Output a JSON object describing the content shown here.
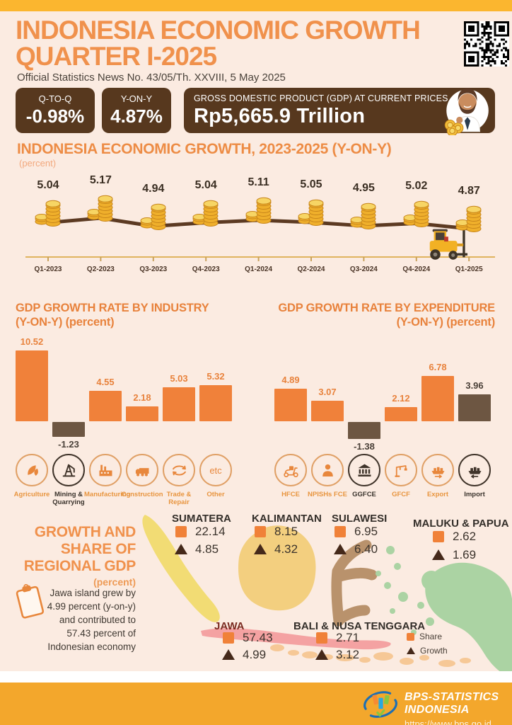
{
  "header": {
    "title_line1": "INDONESIA ECONOMIC GROWTH",
    "title_line2": "QUARTER I-2025",
    "subtitle": "Official Statistics News No. 43/05/Th. XXVIII, 5 May 2025",
    "stats": [
      {
        "label": "Q-TO-Q",
        "value": "-0.98%"
      },
      {
        "label": "Y-ON-Y",
        "value": "4.87%"
      },
      {
        "label": "GROSS DOMESTIC PRODUCT (GDP) AT CURRENT PRICES",
        "value": "Rp5,665.9 Trillion"
      }
    ]
  },
  "chart_data": [
    {
      "type": "line",
      "title": "INDONESIA ECONOMIC GROWTH, 2023-2025 (Y-ON-Y)",
      "ylabel": "(percent)",
      "categories": [
        "Q1-2023",
        "Q2-2023",
        "Q3-2023",
        "Q4-2023",
        "Q1-2024",
        "Q2-2024",
        "Q3-2024",
        "Q4-2024",
        "Q1-2025"
      ],
      "values": [
        5.04,
        5.17,
        4.94,
        5.04,
        5.11,
        5.05,
        4.95,
        5.02,
        4.87
      ],
      "marker": "coin-stack",
      "line_color": "#5C3A22",
      "grid": false
    },
    {
      "type": "bar",
      "title": "GDP GROWTH RATE BY INDUSTRY",
      "subtitle": "(Y-ON-Y) (percent)",
      "categories": [
        "Agriculture",
        "Mining & Quarrying",
        "Manufacturing",
        "Construction",
        "Trade & Repair",
        "Other"
      ],
      "values": [
        10.52,
        -1.23,
        4.55,
        2.18,
        5.03,
        5.32
      ],
      "icons": [
        "leaf-icon",
        "oil-derrick-icon",
        "factory-icon",
        "truck-icon",
        "trade-hands-icon",
        "etc-icon"
      ],
      "bar_colors": [
        "#F0813A",
        "#6D5642",
        "#F0813A",
        "#F0813A",
        "#F0813A",
        "#F0813A"
      ]
    },
    {
      "type": "bar",
      "title": "GDP GROWTH RATE BY EXPENDITURE",
      "subtitle": "(Y-ON-Y) (percent)",
      "categories": [
        "HFCE",
        "NPISHs FCE",
        "GGFCE",
        "GFCF",
        "Export",
        "Import"
      ],
      "values": [
        4.89,
        3.07,
        -1.38,
        2.12,
        6.78,
        3.96
      ],
      "icons": [
        "scooter-icon",
        "person-icon",
        "bank-icon",
        "crane-icon",
        "ship-export-icon",
        "ship-import-icon"
      ],
      "bar_colors": [
        "#F0813A",
        "#F0813A",
        "#6D5642",
        "#F0813A",
        "#F0813A",
        "#6D5642"
      ]
    },
    {
      "type": "map",
      "title": "GROWTH AND SHARE OF REGIONAL GDP",
      "subtitle": "(percent)",
      "note": "Jawa island grew by 4.99 percent (y-on-y) and contributed to 57.43 percent of Indonesian economy",
      "legend": [
        {
          "label": "Share",
          "marker": "square"
        },
        {
          "label": "Growth",
          "marker": "triangle"
        }
      ],
      "regions": [
        {
          "name": "SUMATERA",
          "share": "22.14",
          "growth": "4.85",
          "color": "#F2DC74"
        },
        {
          "name": "KALIMANTAN",
          "share": "8.15",
          "growth": "4.32",
          "color": "#F3CF7F"
        },
        {
          "name": "SULAWESI",
          "share": "6.95",
          "growth": "6.40",
          "color": "#B9926C"
        },
        {
          "name": "MALUKU & PAPUA",
          "share": "2.62",
          "growth": "1.69",
          "color": "#ABD3A3"
        },
        {
          "name": "JAWA",
          "share": "57.43",
          "growth": "4.99",
          "color": "#F4A2A2"
        },
        {
          "name": "BALI & NUSA TENGGARA",
          "share": "2.71",
          "growth": "3.12",
          "color": "#F6C896"
        }
      ]
    }
  ],
  "footer": {
    "org": "BPS-STATISTICS INDONESIA",
    "url": "https://www.bps.go.id"
  }
}
